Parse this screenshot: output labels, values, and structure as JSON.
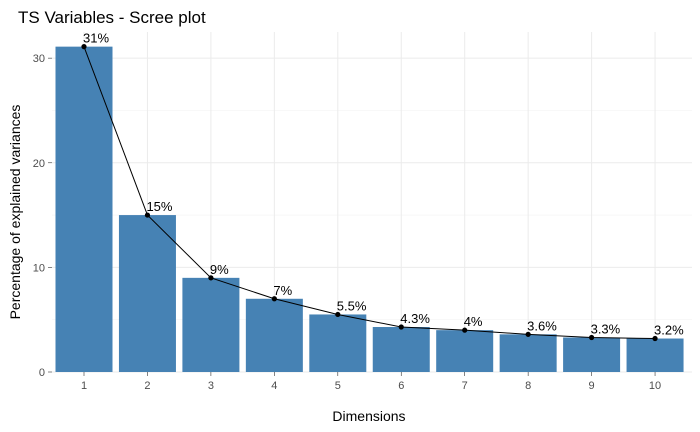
{
  "chart_data": {
    "type": "bar",
    "title": "TS Variables - Scree plot",
    "xlabel": "Dimensions",
    "ylabel": "Percentage of explained variances",
    "categories": [
      "1",
      "2",
      "3",
      "4",
      "5",
      "6",
      "7",
      "8",
      "9",
      "10"
    ],
    "values": [
      31.1,
      15.0,
      9.0,
      7.0,
      5.5,
      4.3,
      4.0,
      3.6,
      3.3,
      3.2
    ],
    "data_labels": [
      "31%",
      "15%",
      "9%",
      "7%",
      "5.5%",
      "4.3%",
      "4%",
      "3.6%",
      "3.3%",
      "3.2%"
    ],
    "yticks": [
      0,
      10,
      20,
      30
    ],
    "ylim": [
      0,
      32.5
    ],
    "grid": true,
    "bar_color": "#4682B4",
    "line_color": "#000000",
    "overlay": "line-with-points"
  }
}
